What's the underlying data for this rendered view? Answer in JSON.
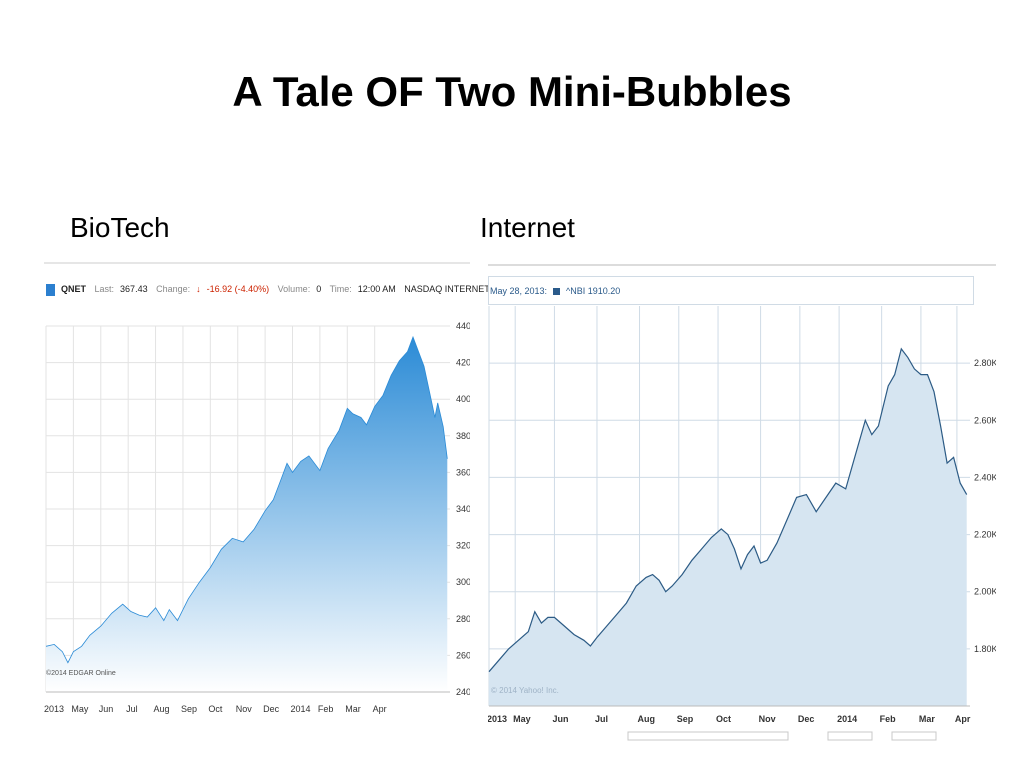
{
  "slide": {
    "title": "A Tale OF Two Mini-Bubbles",
    "left_heading": "BioTech",
    "right_heading": "Internet"
  },
  "left_quote": {
    "symbol": "QNET",
    "last_label": "Last:",
    "last_value": "367.43",
    "change_label": "Change:",
    "change_value": "-16.92 (-4.40%)",
    "volume_label": "Volume:",
    "volume_value": "0",
    "time_label": "Time:",
    "time_value": "12:00 AM",
    "index_name": "NASDAQ INTERNET INDEX",
    "credit": "©2014 EDGAR Online"
  },
  "right_quote": {
    "date_label": "May 28, 2013:",
    "series_label": "^NBI 1910.20",
    "credit": "© 2014 Yahoo! Inc."
  },
  "colors": {
    "left_fill_top": "#2b8bd6",
    "left_fill_bottom": "#ffffff",
    "right_fill": "#d6e5f1",
    "right_line": "#2c5b85",
    "down_arrow": "#cc2200"
  },
  "chart_data": [
    {
      "type": "area",
      "title": "",
      "series": [
        {
          "name": "QNET",
          "points": [
            [
              0,
              265
            ],
            [
              0.3,
              266
            ],
            [
              0.6,
              262
            ],
            [
              0.8,
              256
            ],
            [
              1.0,
              262
            ],
            [
              1.3,
              265
            ],
            [
              1.6,
              271
            ],
            [
              2.0,
              276
            ],
            [
              2.4,
              283
            ],
            [
              2.8,
              288
            ],
            [
              3.1,
              284
            ],
            [
              3.4,
              282
            ],
            [
              3.7,
              281
            ],
            [
              4.0,
              286
            ],
            [
              4.3,
              279
            ],
            [
              4.5,
              285
            ],
            [
              4.8,
              279
            ],
            [
              5.2,
              291
            ],
            [
              5.6,
              300
            ],
            [
              6.0,
              308
            ],
            [
              6.4,
              318
            ],
            [
              6.8,
              324
            ],
            [
              7.2,
              322
            ],
            [
              7.6,
              329
            ],
            [
              8.0,
              339
            ],
            [
              8.3,
              345
            ],
            [
              8.6,
              357
            ],
            [
              8.8,
              365
            ],
            [
              9.0,
              360
            ],
            [
              9.3,
              366
            ],
            [
              9.6,
              369
            ],
            [
              10.0,
              361
            ],
            [
              10.3,
              373
            ],
            [
              10.7,
              383
            ],
            [
              11.0,
              395
            ],
            [
              11.2,
              392
            ],
            [
              11.5,
              390
            ],
            [
              11.7,
              386
            ],
            [
              12.0,
              396
            ],
            [
              12.3,
              402
            ],
            [
              12.6,
              413
            ],
            [
              12.9,
              421
            ],
            [
              13.2,
              426
            ],
            [
              13.4,
              434
            ],
            [
              13.6,
              426
            ],
            [
              13.8,
              418
            ],
            [
              14.0,
              404
            ],
            [
              14.2,
              390
            ],
            [
              14.3,
              398
            ],
            [
              14.5,
              385
            ],
            [
              14.65,
              367.43
            ]
          ]
        }
      ],
      "xlim": [
        0,
        14.75
      ],
      "x_ticks": [
        {
          "x": 0,
          "label": "2013"
        },
        {
          "x": 1,
          "label": "May"
        },
        {
          "x": 2,
          "label": "Jun"
        },
        {
          "x": 3,
          "label": "Jul"
        },
        {
          "x": 4,
          "label": "Aug"
        },
        {
          "x": 5,
          "label": "Sep"
        },
        {
          "x": 6,
          "label": "Oct"
        },
        {
          "x": 7,
          "label": "Nov"
        },
        {
          "x": 8,
          "label": "Dec"
        },
        {
          "x": 9,
          "label": "2014"
        },
        {
          "x": 10,
          "label": "Feb"
        },
        {
          "x": 11,
          "label": "Mar"
        },
        {
          "x": 12,
          "label": "Apr"
        }
      ],
      "ylim": [
        240,
        440
      ],
      "y_ticks": [
        240,
        260,
        280,
        300,
        320,
        340,
        360,
        380,
        400,
        420,
        440
      ],
      "grid": true
    },
    {
      "type": "area",
      "title": "",
      "series": [
        {
          "name": "^NBI",
          "points": [
            [
              0,
              1720
            ],
            [
              0.3,
              1760
            ],
            [
              0.6,
              1800
            ],
            [
              1.0,
              1840
            ],
            [
              1.2,
              1860
            ],
            [
              1.4,
              1930
            ],
            [
              1.6,
              1890
            ],
            [
              1.8,
              1910
            ],
            [
              2.0,
              1910.2
            ],
            [
              2.3,
              1880
            ],
            [
              2.6,
              1850
            ],
            [
              2.9,
              1830
            ],
            [
              3.1,
              1810
            ],
            [
              3.3,
              1840
            ],
            [
              3.6,
              1880
            ],
            [
              3.9,
              1920
            ],
            [
              4.2,
              1960
            ],
            [
              4.5,
              2020
            ],
            [
              4.8,
              2050
            ],
            [
              5.0,
              2060
            ],
            [
              5.2,
              2040
            ],
            [
              5.4,
              2000
            ],
            [
              5.6,
              2020
            ],
            [
              5.9,
              2060
            ],
            [
              6.2,
              2110
            ],
            [
              6.5,
              2150
            ],
            [
              6.8,
              2190
            ],
            [
              7.1,
              2220
            ],
            [
              7.3,
              2200
            ],
            [
              7.5,
              2150
            ],
            [
              7.7,
              2080
            ],
            [
              7.9,
              2130
            ],
            [
              8.1,
              2160
            ],
            [
              8.3,
              2100
            ],
            [
              8.5,
              2110
            ],
            [
              8.8,
              2170
            ],
            [
              9.1,
              2250
            ],
            [
              9.4,
              2330
            ],
            [
              9.7,
              2340
            ],
            [
              10.0,
              2280
            ],
            [
              10.3,
              2330
            ],
            [
              10.6,
              2380
            ],
            [
              10.9,
              2360
            ],
            [
              11.2,
              2480
            ],
            [
              11.5,
              2600
            ],
            [
              11.7,
              2550
            ],
            [
              11.9,
              2580
            ],
            [
              12.2,
              2720
            ],
            [
              12.4,
              2760
            ],
            [
              12.6,
              2850
            ],
            [
              12.8,
              2820
            ],
            [
              13.0,
              2780
            ],
            [
              13.2,
              2760
            ],
            [
              13.4,
              2760
            ],
            [
              13.6,
              2700
            ],
            [
              13.8,
              2580
            ],
            [
              14.0,
              2450
            ],
            [
              14.2,
              2470
            ],
            [
              14.4,
              2380
            ],
            [
              14.6,
              2340
            ]
          ]
        }
      ],
      "xlim": [
        0,
        14.7
      ],
      "x_ticks": [
        {
          "x": 0,
          "label": "2013"
        },
        {
          "x": 0.8,
          "label": "May"
        },
        {
          "x": 2.0,
          "label": "Jun"
        },
        {
          "x": 3.3,
          "label": "Jul"
        },
        {
          "x": 4.6,
          "label": "Aug"
        },
        {
          "x": 5.8,
          "label": "Sep"
        },
        {
          "x": 7.0,
          "label": "Oct"
        },
        {
          "x": 8.3,
          "label": "Nov"
        },
        {
          "x": 9.5,
          "label": "Dec"
        },
        {
          "x": 10.7,
          "label": "2014"
        },
        {
          "x": 12.0,
          "label": "Feb"
        },
        {
          "x": 13.2,
          "label": "Mar"
        },
        {
          "x": 14.3,
          "label": "Apr"
        }
      ],
      "ylim": [
        1600,
        3000
      ],
      "y_ticks": [
        {
          "v": 1800,
          "label": "1.80K"
        },
        {
          "v": 2000,
          "label": "2.00K"
        },
        {
          "v": 2200,
          "label": "2.20K"
        },
        {
          "v": 2400,
          "label": "2.40K"
        },
        {
          "v": 2600,
          "label": "2.60K"
        },
        {
          "v": 2800,
          "label": "2.80K"
        }
      ],
      "grid": true
    }
  ]
}
